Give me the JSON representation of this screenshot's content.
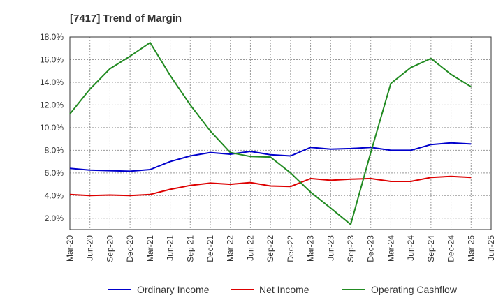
{
  "chart_data": {
    "type": "line",
    "title": "[7417]  Trend of Margin",
    "xlabel": "",
    "ylabel": "",
    "x": [
      "Mar-20",
      "Jun-20",
      "Sep-20",
      "Dec-20",
      "Mar-21",
      "Jun-21",
      "Sep-21",
      "Dec-21",
      "Mar-22",
      "Jun-22",
      "Sep-22",
      "Dec-22",
      "Mar-23",
      "Jun-23",
      "Sep-23",
      "Dec-23",
      "Mar-24",
      "Jun-24",
      "Sep-24",
      "Dec-24",
      "Mar-25",
      "Jun-25"
    ],
    "y_ticks": [
      "2.0%",
      "4.0%",
      "6.0%",
      "8.0%",
      "10.0%",
      "12.0%",
      "14.0%",
      "16.0%",
      "18.0%"
    ],
    "ylim": [
      1.0,
      18.0
    ],
    "grid": true,
    "legend_position": "bottom",
    "series": [
      {
        "name": "Ordinary Income",
        "color": "#0000cc",
        "values": [
          6.4,
          6.25,
          6.2,
          6.15,
          6.3,
          7.0,
          7.5,
          7.8,
          7.65,
          7.9,
          7.6,
          7.5,
          8.25,
          8.1,
          8.15,
          8.25,
          8.0,
          8.0,
          8.5,
          8.65,
          8.55,
          null
        ]
      },
      {
        "name": "Net Income",
        "color": "#dd0000",
        "values": [
          4.1,
          4.0,
          4.05,
          4.0,
          4.1,
          4.55,
          4.9,
          5.1,
          5.0,
          5.15,
          4.85,
          4.8,
          5.5,
          5.35,
          5.45,
          5.5,
          5.25,
          5.25,
          5.6,
          5.7,
          5.6,
          null
        ]
      },
      {
        "name": "Operating Cashflow",
        "color": "#228b22",
        "values": [
          11.2,
          13.4,
          15.2,
          16.3,
          17.5,
          14.6,
          12.0,
          9.7,
          7.8,
          7.45,
          7.4,
          6.0,
          4.3,
          2.9,
          1.45,
          7.8,
          13.9,
          15.3,
          16.1,
          14.7,
          13.6,
          null
        ]
      }
    ]
  }
}
